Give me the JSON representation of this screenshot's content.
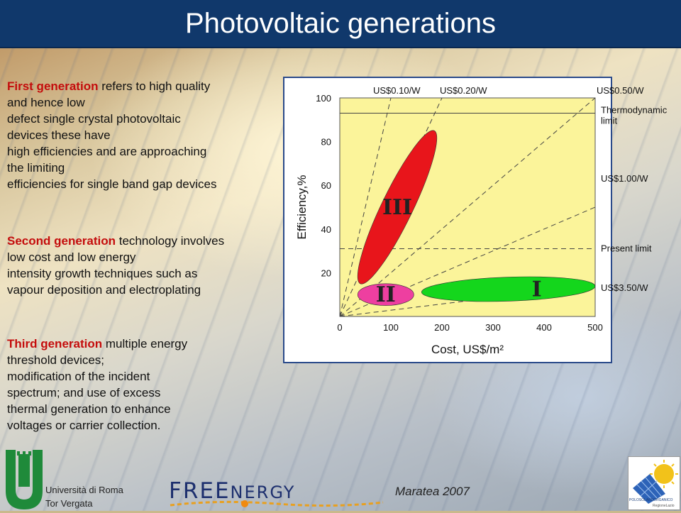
{
  "title": "Photovoltaic generations",
  "paragraphs": [
    {
      "highlight": "First generation",
      "lines": [
        " refers to high quality",
        "and hence low",
        "defect single crystal photovoltaic",
        "devices these have",
        "high efficiencies and are approaching",
        "the limiting",
        "efficiencies for single band gap devices"
      ]
    },
    {
      "highlight": "Second generation",
      "lines": [
        " technology involves",
        "low cost and low energy",
        "intensity growth techniques such as",
        "vapour deposition and electroplating"
      ]
    },
    {
      "highlight": "Third generation",
      "lines": [
        " multiple energy",
        "threshold devices;",
        "modification of the incident",
        "spectrum; and use of excess",
        "thermal generation to enhance",
        "voltages or carrier collection."
      ]
    }
  ],
  "footer": {
    "university_line1": "Università di Roma",
    "university_line2": "Tor Vergata",
    "freenergy_big": "FREE",
    "freenergy_small": "NERGY",
    "event": "Maratea 2007",
    "logo_text": "POLOSOLAREORGANICO",
    "logo_subtext": "RegioneLazio"
  },
  "colors": {
    "title_bar": "#10386b",
    "highlight": "#c40c0c",
    "plot_bg": "#fbf49a",
    "gen_III": "#e8151b",
    "gen_II": "#ee3fa0",
    "gen_I": "#14d61c"
  },
  "chart_data": {
    "type": "scatter",
    "xlabel": "Cost, US$/m²",
    "ylabel": "Efficiency,%",
    "xlim": [
      0,
      500
    ],
    "ylim": [
      0,
      100
    ],
    "x_ticks": [
      0,
      100,
      200,
      300,
      400,
      500
    ],
    "y_ticks": [
      20,
      40,
      60,
      80,
      100
    ],
    "cost_per_watt_lines": [
      {
        "label": "US$0.10/W",
        "usd_per_w": 0.1
      },
      {
        "label": "US$0.20/W",
        "usd_per_w": 0.2
      },
      {
        "label": "US$0.50/W",
        "usd_per_w": 0.5
      },
      {
        "label": "US$1.00/W",
        "usd_per_w": 1.0
      },
      {
        "label": "US$3.50/W",
        "usd_per_w": 3.5
      }
    ],
    "horizontal_limits": [
      {
        "label": "Thermodynamic limit",
        "label_lines": [
          "Thermodynamic",
          "limit"
        ],
        "efficiency": 93,
        "style": "solid"
      },
      {
        "label": "Present limit",
        "efficiency": 31,
        "style": "dashed"
      }
    ],
    "regions": [
      {
        "name": "III",
        "cost_range": [
          40,
          185
        ],
        "efficiency_range": [
          15,
          85
        ],
        "color": "#e8151b"
      },
      {
        "name": "II",
        "cost_range": [
          35,
          145
        ],
        "efficiency_range": [
          5,
          15
        ],
        "color": "#ee3fa0"
      },
      {
        "name": "I",
        "cost_range": [
          160,
          500
        ],
        "efficiency_range": [
          7,
          18
        ],
        "color": "#14d61c"
      }
    ]
  }
}
